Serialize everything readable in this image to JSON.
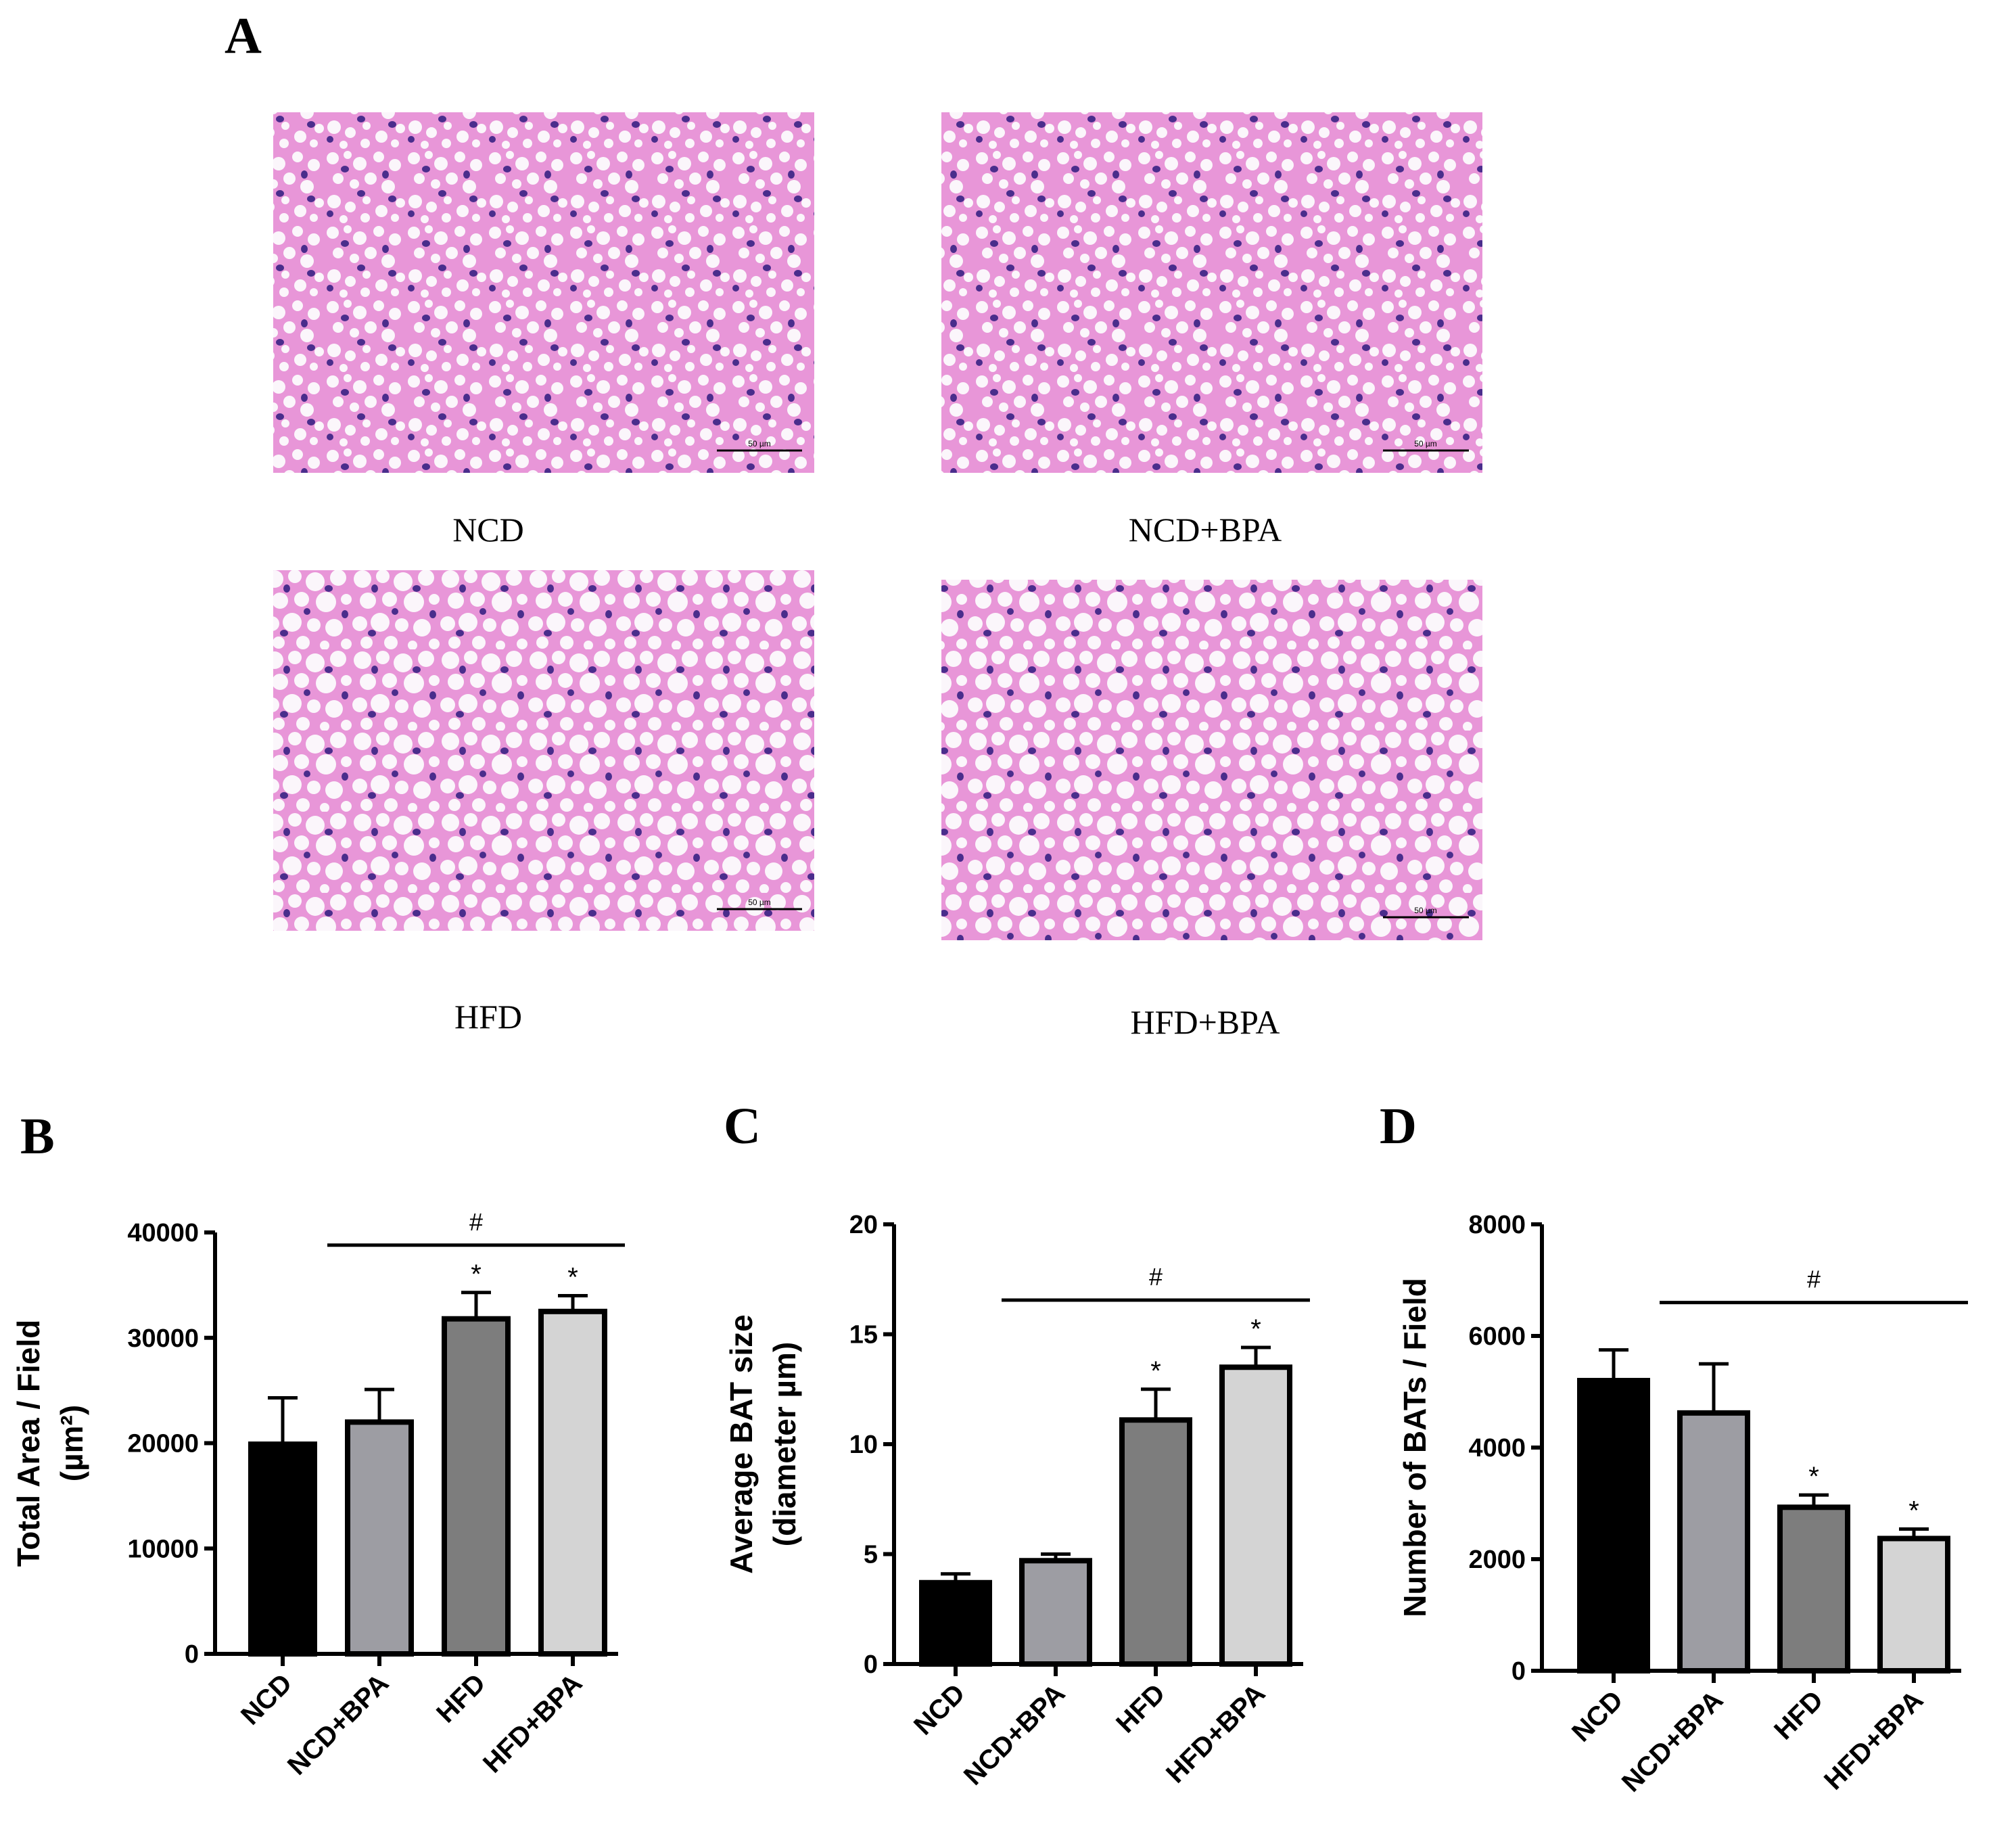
{
  "panel_letters": [
    "A",
    "B",
    "C",
    "D"
  ],
  "micrographs": [
    {
      "label": "NCD",
      "scale_bar": "50 µm"
    },
    {
      "label": "NCD+BPA",
      "scale_bar": "50 µm"
    },
    {
      "label": "HFD",
      "scale_bar": "50 µm"
    },
    {
      "label": "HFD+BPA",
      "scale_bar": "50 µm"
    }
  ],
  "colors": {
    "tissue_pink": "#e896d8",
    "nucleus_purple": "#4a2d8c",
    "vacuole_white": "#fbf6fb",
    "bar_fills": [
      "#000000",
      "#9d9da3",
      "#7d7d7d",
      "#d4d4d4"
    ]
  },
  "chart_data": [
    {
      "type": "bar",
      "categories": [
        "NCD",
        "NCD+BPA",
        "HFD",
        "HFD+BPA"
      ],
      "values": [
        19900,
        22000,
        31800,
        32500
      ],
      "errors": [
        4400,
        3100,
        2500,
        1500
      ],
      "stars": [
        "",
        "",
        "*",
        "*"
      ],
      "hash_label": "#",
      "hash_span": [
        1,
        3
      ],
      "ylabel_lines": [
        "Total Area / Field",
        "(µm²)"
      ],
      "yticks": [
        "0",
        "10000",
        "20000",
        "30000",
        "40000"
      ],
      "ylim": [
        0,
        40000
      ]
    },
    {
      "type": "bar",
      "categories": [
        "NCD",
        "NCD+BPA",
        "HFD",
        "HFD+BPA"
      ],
      "values": [
        3.7,
        4.7,
        11.1,
        13.5
      ],
      "errors": [
        0.4,
        0.3,
        1.4,
        0.9
      ],
      "stars": [
        "",
        "",
        "*",
        "*"
      ],
      "hash_label": "#",
      "hash_span": [
        1,
        3
      ],
      "ylabel_lines": [
        "Average BAT size",
        "(diameter µm)"
      ],
      "yticks": [
        "0",
        "5",
        "10",
        "15",
        "20"
      ],
      "ylim": [
        0,
        20
      ]
    },
    {
      "type": "bar",
      "categories": [
        "NCD",
        "NCD+BPA",
        "HFD",
        "HFD+BPA"
      ],
      "values": [
        5200,
        4620,
        2930,
        2370
      ],
      "errors": [
        550,
        880,
        220,
        170
      ],
      "stars": [
        "",
        "",
        "*",
        "*"
      ],
      "hash_label": "#",
      "hash_span": [
        1,
        3
      ],
      "ylabel_lines": [
        "Number of BATs / Field"
      ],
      "yticks": [
        "0",
        "2000",
        "4000",
        "6000",
        "8000"
      ],
      "ylim": [
        0,
        8000
      ]
    }
  ]
}
